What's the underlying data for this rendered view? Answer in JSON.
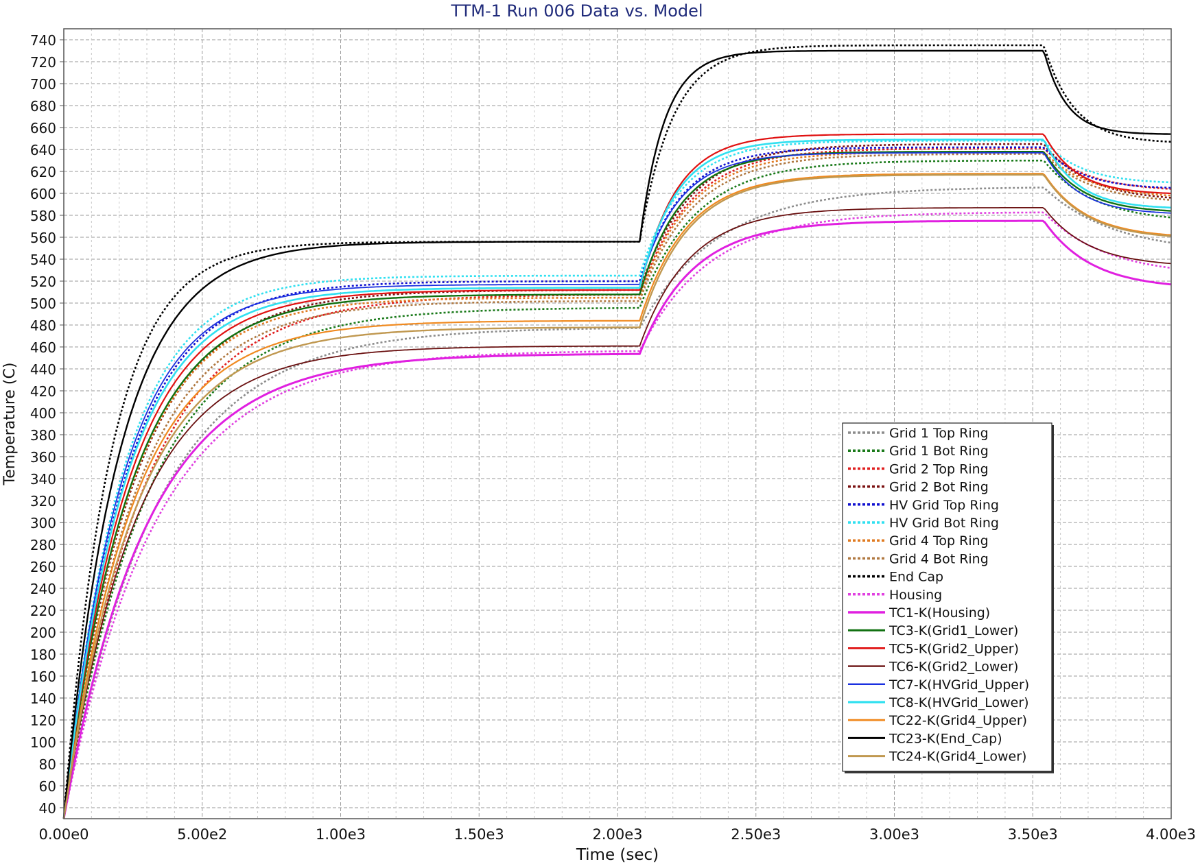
{
  "chart_data": {
    "type": "line",
    "title": "TTM-1 Run 006 Data vs. Model",
    "xlabel": "Time (sec)",
    "ylabel": "Temperature (C)",
    "xlim": [
      0,
      4000
    ],
    "ylim": [
      30,
      750
    ],
    "grid": true,
    "legend_position": "bottom-right",
    "xticks": [
      0,
      500,
      1000,
      1500,
      2000,
      2500,
      3000,
      3500,
      4000
    ],
    "xtick_labels": [
      "0.00e0",
      "5.00e2",
      "1.00e3",
      "1.50e3",
      "2.00e3",
      "2.50e3",
      "3.00e3",
      "3.50e3",
      "4.00e3"
    ],
    "yticks": [
      40,
      60,
      80,
      100,
      120,
      140,
      160,
      180,
      200,
      220,
      240,
      260,
      280,
      300,
      320,
      340,
      360,
      380,
      400,
      420,
      440,
      460,
      480,
      500,
      520,
      540,
      560,
      580,
      600,
      620,
      640,
      660,
      680,
      700,
      720,
      740
    ],
    "series": [
      {
        "name": "Grid 1 Top Ring",
        "color": "#8c8c8c",
        "style": "dotted",
        "tau1": 330,
        "plateau1": 478,
        "tau2": 280,
        "plateau2": 606,
        "end": 555
      },
      {
        "name": "Grid 1 Bot Ring",
        "color": "#1a7a1a",
        "style": "dotted",
        "tau1": 300,
        "plateau1": 496,
        "tau2": 200,
        "plateau2": 630,
        "end": 578
      },
      {
        "name": "Grid 2 Top Ring",
        "color": "#e02020",
        "style": "dotted",
        "tau1": 290,
        "plateau1": 508,
        "tau2": 180,
        "plateau2": 641,
        "end": 604
      },
      {
        "name": "Grid 2 Bot Ring",
        "color": "#7a1010",
        "style": "dotted",
        "tau1": 250,
        "plateau1": 512,
        "tau2": 180,
        "plateau2": 645,
        "end": 596
      },
      {
        "name": "HV Grid Top Ring",
        "color": "#1010d0",
        "style": "dotted",
        "tau1": 220,
        "plateau1": 520,
        "tau2": 150,
        "plateau2": 642,
        "end": 605
      },
      {
        "name": "HV Grid Bot Ring",
        "color": "#30e0f0",
        "style": "dotted",
        "tau1": 210,
        "plateau1": 525,
        "tau2": 150,
        "plateau2": 648,
        "end": 610
      },
      {
        "name": "Grid 4 Top Ring",
        "color": "#e07a20",
        "style": "dotted",
        "tau1": 240,
        "plateau1": 505,
        "tau2": 180,
        "plateau2": 638,
        "end": 598
      },
      {
        "name": "Grid 4 Bot Ring",
        "color": "#b07840",
        "style": "dotted",
        "tau1": 260,
        "plateau1": 502,
        "tau2": 190,
        "plateau2": 636,
        "end": 594
      },
      {
        "name": "End Cap",
        "color": "#000000",
        "style": "dotted",
        "tau1": 170,
        "plateau1": 556,
        "tau2": 120,
        "plateau2": 735,
        "end": 647
      },
      {
        "name": "Housing",
        "color": "#e040e0",
        "style": "dotted",
        "tau1": 330,
        "plateau1": 457,
        "tau2": 250,
        "plateau2": 583,
        "end": 532
      },
      {
        "name": "TC1-K(Housing)",
        "color": "#e020e0",
        "style": "solid",
        "width": 3,
        "tau1": 300,
        "plateau1": 454,
        "tau2": 190,
        "plateau2": 575,
        "end": 517
      },
      {
        "name": "TC3-K(Grid1_Lower)",
        "color": "#107010",
        "style": "solid",
        "width": 2.4,
        "tau1": 240,
        "plateau1": 508,
        "tau2": 150,
        "plateau2": 638,
        "end": 584
      },
      {
        "name": "TC5-K(Grid2_Upper)",
        "color": "#e01010",
        "style": "solid",
        "width": 2.2,
        "tau1": 230,
        "plateau1": 512,
        "tau2": 130,
        "plateau2": 654,
        "end": 600
      },
      {
        "name": "TC6-K(Grid2_Lower)",
        "color": "#6a1010",
        "style": "solid",
        "width": 1.8,
        "tau1": 260,
        "plateau1": 461,
        "tau2": 180,
        "plateau2": 587,
        "end": 536
      },
      {
        "name": "TC7-K(HVGrid_Upper)",
        "color": "#1a30e0",
        "style": "solid",
        "width": 1.8,
        "tau1": 210,
        "plateau1": 517,
        "tau2": 140,
        "plateau2": 637,
        "end": 582
      },
      {
        "name": "TC8-K(HVGrid_Lower)",
        "color": "#30e0f0",
        "style": "solid",
        "width": 2.6,
        "tau1": 220,
        "plateau1": 514,
        "tau2": 130,
        "plateau2": 649,
        "end": 587
      },
      {
        "name": "TC22-K(Grid4_Upper)",
        "color": "#f08a20",
        "style": "solid",
        "width": 2.2,
        "tau1": 250,
        "plateau1": 484,
        "tau2": 170,
        "plateau2": 618,
        "end": 562
      },
      {
        "name": "TC23-K(End_Cap)",
        "color": "#000000",
        "style": "solid",
        "width": 2.4,
        "tau1": 200,
        "plateau1": 556,
        "tau2": 90,
        "plateau2": 730,
        "end": 654
      },
      {
        "name": "TC24-K(Grid4_Lower)",
        "color": "#c09850",
        "style": "solid",
        "width": 2.4,
        "tau1": 260,
        "plateau1": 478,
        "tau2": 170,
        "plateau2": 617,
        "end": 561
      }
    ]
  }
}
